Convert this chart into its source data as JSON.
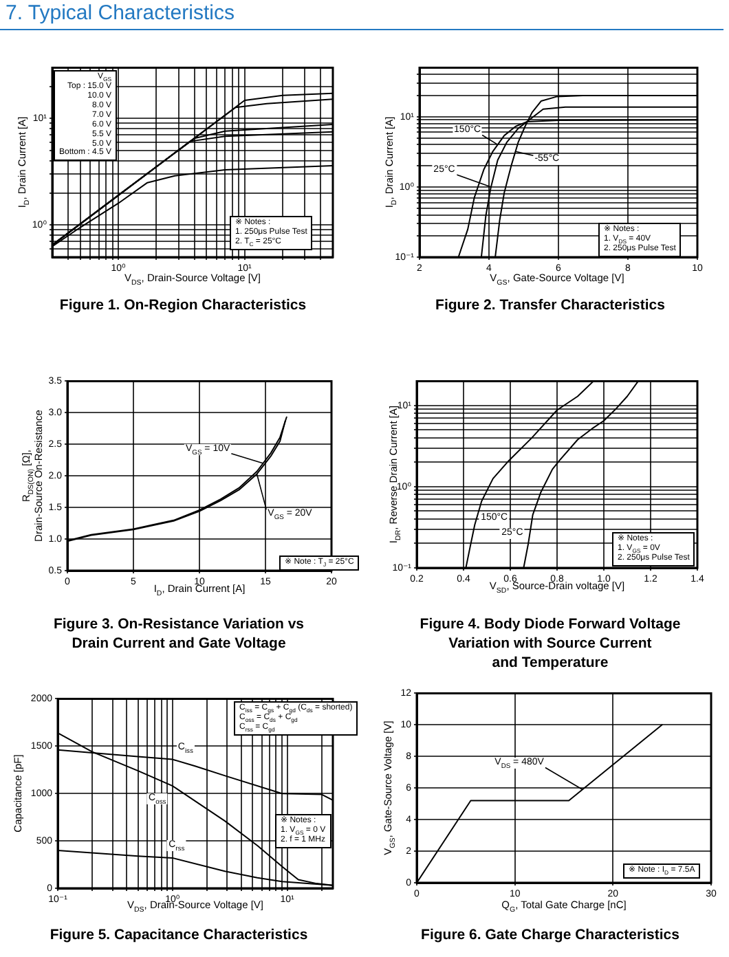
{
  "chart_data": [
    {
      "type": "line",
      "title": "Figure 1. On-Region Characteristics",
      "subtitle": "7. Typical Characteristics",
      "xlabel": "V$_{DS}$, Drain-Source Voltage [V]",
      "ylabel": "I$_{D}$, Drain Current [A]",
      "log": "xy",
      "xlim": [
        0.3,
        50
      ],
      "ylim": [
        0.5,
        30
      ],
      "xticks": [
        {
          "value": 0.4,
          "label": null
        },
        {
          "value": 0.5,
          "label": null
        },
        {
          "value": 0.6,
          "label": null
        },
        {
          "value": 0.7,
          "label": null
        },
        {
          "value": 0.8,
          "label": null
        },
        {
          "value": 0.9,
          "label": null
        },
        {
          "value": 1,
          "label": "10⁰"
        },
        {
          "value": 2,
          "label": null
        },
        {
          "value": 3,
          "label": null
        },
        {
          "value": 4,
          "label": null
        },
        {
          "value": 5,
          "label": null
        },
        {
          "value": 6,
          "label": null
        },
        {
          "value": 7,
          "label": null
        },
        {
          "value": 8,
          "label": null
        },
        {
          "value": 9,
          "label": null
        },
        {
          "value": 10,
          "label": "10¹"
        },
        {
          "value": 20,
          "label": null
        },
        {
          "value": 30,
          "label": null
        },
        {
          "value": 40,
          "label": null
        }
      ],
      "yticks": [
        {
          "value": 0.6,
          "label": null
        },
        {
          "value": 0.7,
          "label": null
        },
        {
          "value": 0.8,
          "label": null
        },
        {
          "value": 0.9,
          "label": null
        },
        {
          "value": 1,
          "label": "10⁰"
        },
        {
          "value": 2,
          "label": null
        },
        {
          "value": 3,
          "label": null
        },
        {
          "value": 4,
          "label": null
        },
        {
          "value": 5,
          "label": null
        },
        {
          "value": 6,
          "label": null
        },
        {
          "value": 7,
          "label": null
        },
        {
          "value": 8,
          "label": null
        },
        {
          "value": 9,
          "label": null
        },
        {
          "value": 10,
          "label": "10¹"
        },
        {
          "value": 20,
          "label": null
        }
      ],
      "grid": true,
      "series": [
        {
          "color": "#000000",
          "x": [
            0.3,
            1,
            3,
            10,
            20,
            50
          ],
          "values": [
            0.65,
            1.9,
            5.05,
            14.8,
            16.5,
            17.2
          ]
        },
        {
          "color": "#000000",
          "x": [
            0.3,
            1,
            3,
            8.5,
            15,
            50
          ],
          "values": [
            0.65,
            1.9,
            5.05,
            12.7,
            13.8,
            15.2
          ]
        },
        {
          "color": "#000000",
          "x": [
            0.3,
            1,
            3,
            4,
            7,
            50
          ],
          "values": [
            0.65,
            1.9,
            5.05,
            6.5,
            7.6,
            8.8
          ]
        },
        {
          "color": "#000000",
          "x": [
            0.3,
            1,
            3,
            3.7,
            7,
            50
          ],
          "values": [
            0.65,
            1.9,
            5.05,
            6.1,
            6.8,
            7.5
          ]
        },
        {
          "color": "#000000",
          "x": [
            0.3,
            0.5,
            1,
            1.7,
            2.8,
            7,
            50
          ],
          "values": [
            0.63,
            0.95,
            1.6,
            2.5,
            2.9,
            3.3,
            3.6
          ]
        }
      ],
      "annotations": [
        "V$_{GS}$\nTop : 15.0 V\n10.0 V\n8.0 V\n7.0 V\n6.0 V\n5.5 V\n5.0 V\nBottom : 4.5 V",
        "※ Notes :\n1. 250μs Pulse Test\n2. T$_{C}$ = 25°C"
      ]
    },
    {
      "type": "line",
      "title": "Figure 2. Transfer Characteristics",
      "xlabel": "V$_{GS}$, Gate-Source Voltage [V]",
      "ylabel": "I$_{D}$, Drain Current [A]",
      "log": "y",
      "xlim": [
        2,
        10
      ],
      "ylim": [
        0.1,
        50
      ],
      "xticks": [
        2,
        4,
        6,
        8,
        10
      ],
      "yticks": [
        {
          "value": 0.1,
          "label": "10⁻¹"
        },
        {
          "value": 0.2,
          "label": null
        },
        {
          "value": 0.3,
          "label": null
        },
        {
          "value": 0.4,
          "label": null
        },
        {
          "value": 0.5,
          "label": null
        },
        {
          "value": 0.6,
          "label": null
        },
        {
          "value": 0.7,
          "label": null
        },
        {
          "value": 0.8,
          "label": null
        },
        {
          "value": 0.9,
          "label": null
        },
        {
          "value": 1,
          "label": "10⁰"
        },
        {
          "value": 2,
          "label": null
        },
        {
          "value": 3,
          "label": null
        },
        {
          "value": 4,
          "label": null
        },
        {
          "value": 5,
          "label": null
        },
        {
          "value": 6,
          "label": null
        },
        {
          "value": 7,
          "label": null
        },
        {
          "value": 8,
          "label": null
        },
        {
          "value": 9,
          "label": null
        },
        {
          "value": 10,
          "label": "10¹"
        },
        {
          "value": 20,
          "label": null
        },
        {
          "value": 30,
          "label": null
        },
        {
          "value": 40,
          "label": null
        }
      ],
      "grid": true,
      "series": [
        {
          "color": "#000000",
          "x": [
            3.12,
            3.39,
            3.58,
            3.85,
            4.11,
            4.44,
            4.77,
            5.1,
            6,
            10
          ],
          "values": [
            0.1,
            0.25,
            0.71,
            1.76,
            3.2,
            5.4,
            7.3,
            8.5,
            8.9,
            9
          ]
        },
        {
          "color": "#000000",
          "x": [
            3.78,
            3.91,
            4.05,
            4.25,
            4.51,
            4.84,
            5.17,
            5.56,
            6.2,
            10
          ],
          "values": [
            0.1,
            0.39,
            0.96,
            2.4,
            4.3,
            6.8,
            9.1,
            12.8,
            13.7,
            13.7
          ]
        },
        {
          "color": "#000000",
          "x": [
            4.18,
            4.31,
            4.44,
            4.64,
            4.84,
            5.04,
            5.24,
            5.5,
            5.96,
            6.7,
            10
          ],
          "values": [
            0.1,
            0.34,
            0.83,
            2,
            4.3,
            7.3,
            11.5,
            16.7,
            19.4,
            20,
            20
          ]
        }
      ],
      "annotations": [
        "※ Notes :\n1. V$_{DS}$ = 40V\n2. 250μs Pulse Test",
        {
          "text": "150°C",
          "x": 4.25,
          "y": 4
        },
        {
          "text": "25°C",
          "x": 4.06,
          "y": 1
        },
        {
          "text": "-55°C",
          "x": 4.76,
          "y": 3.2
        }
      ]
    },
    {
      "type": "line",
      "title": "Figure 3. On-Resistance Variation  vs\nDrain Current and Gate Voltage",
      "xlabel": "I$_{D}$, Drain Current [A]",
      "ylabel": "R$_{DS(ON)}$ [Ω],\nDrain-Source On-Resistance",
      "xlim": [
        0,
        20
      ],
      "ylim": [
        0.5,
        3.5
      ],
      "xticks": [
        0,
        5,
        10,
        15,
        20
      ],
      "yticks": [
        0.5,
        {
          "value": 1,
          "label": "1.0"
        },
        1.5,
        {
          "value": 2,
          "label": "2.0"
        },
        2.5,
        {
          "value": 3,
          "label": "3.0"
        },
        3.5
      ],
      "grid": true,
      "series": [
        {
          "color": "#000000",
          "x": [
            0.1,
            1.8,
            5,
            8.1,
            10,
            11.6,
            13,
            14.35,
            15.4,
            16.1,
            16.6
          ],
          "values": [
            0.98,
            1.07,
            1.16,
            1.3,
            1.46,
            1.63,
            1.81,
            2.07,
            2.36,
            2.61,
            2.93
          ]
        },
        {
          "color": "#000000",
          "x": [
            0.1,
            1.8,
            5,
            8.1,
            10,
            11.6,
            13,
            14.35,
            15.4,
            16.1,
            16.5
          ],
          "values": [
            0.97,
            1.06,
            1.15,
            1.29,
            1.44,
            1.61,
            1.78,
            2.03,
            2.31,
            2.55,
            2.87
          ]
        }
      ],
      "annotations": [
        "※ Note : T$_{J}$ = 25°C",
        {
          "text": "V$_{GS}$ = 10V",
          "x": 14.8,
          "y": 2.2
        },
        {
          "text": "V$_{GS}$ = 20V",
          "x": 14.35,
          "y": 2.03
        }
      ]
    },
    {
      "type": "line",
      "title": "Figure 4. Body Diode Forward Voltage\nVariation with Source Current\nand Temperature",
      "xlabel": "V$_{SD}$, Source-Drain voltage [V]",
      "ylabel": "I$_{DR}$, Reverse Drain Current [A]",
      "log": "y",
      "xlim": [
        0.2,
        1.4
      ],
      "ylim": [
        0.1,
        20
      ],
      "xticks": [
        0.2,
        0.4,
        0.6,
        0.8,
        {
          "value": 1,
          "label": "1.0"
        },
        1.2,
        1.4
      ],
      "yticks": [
        {
          "value": 0.1,
          "label": "10⁻¹"
        },
        {
          "value": 0.2,
          "label": null
        },
        {
          "value": 0.3,
          "label": null
        },
        {
          "value": 0.4,
          "label": null
        },
        {
          "value": 0.5,
          "label": null
        },
        {
          "value": 0.6,
          "label": null
        },
        {
          "value": 0.7,
          "label": null
        },
        {
          "value": 0.8,
          "label": null
        },
        {
          "value": 0.9,
          "label": null
        },
        {
          "value": 1,
          "label": "10⁰"
        },
        {
          "value": 2,
          "label": null
        },
        {
          "value": 3,
          "label": null
        },
        {
          "value": 4,
          "label": null
        },
        {
          "value": 5,
          "label": null
        },
        {
          "value": 6,
          "label": null
        },
        {
          "value": 7,
          "label": null
        },
        {
          "value": 8,
          "label": null
        },
        {
          "value": 9,
          "label": null
        },
        {
          "value": 10,
          "label": "10¹"
        }
      ],
      "grid": true,
      "series": [
        {
          "color": "#000000",
          "x": [
            0.41,
            0.428,
            0.448,
            0.477,
            0.526,
            0.594,
            0.692,
            0.8,
            0.888,
            0.956
          ],
          "values": [
            0.1,
            0.18,
            0.34,
            0.66,
            1.26,
            2.1,
            4,
            8.8,
            13,
            20
          ]
        },
        {
          "color": "#000000",
          "x": [
            0.657,
            0.677,
            0.696,
            0.731,
            0.78,
            0.81,
            0.888,
            0.95,
            1,
            1.05,
            1.1,
            1.147
          ],
          "values": [
            0.1,
            0.2,
            0.45,
            0.86,
            1.64,
            2.1,
            3.8,
            5.2,
            6.5,
            9,
            13,
            20
          ]
        }
      ],
      "annotations": [
        "※ Notes :\n1. V$_{GS}$ = 0V\n2. 250μs Pulse Test",
        {
          "text": "150°C",
          "x": 0.455,
          "y": 0.38
        },
        {
          "text": "25°C",
          "x": 0.685,
          "y": 0.3
        }
      ]
    },
    {
      "type": "line",
      "title": "Figure 5. Capacitance Characteristics",
      "xlabel": "V$_{DS}$, Drain-Source Voltage [V]",
      "ylabel": "Capacitance [pF]",
      "log": "x",
      "xlim": [
        0.1,
        25
      ],
      "ylim": [
        0,
        2000
      ],
      "xticks": [
        {
          "value": 0.1,
          "label": "10⁻¹"
        },
        {
          "value": 0.2,
          "label": null
        },
        {
          "value": 0.3,
          "label": null
        },
        {
          "value": 0.4,
          "label": null
        },
        {
          "value": 0.5,
          "label": null
        },
        {
          "value": 0.6,
          "label": null
        },
        {
          "value": 0.7,
          "label": null
        },
        {
          "value": 0.8,
          "label": null
        },
        {
          "value": 0.9,
          "label": null
        },
        {
          "value": 1,
          "label": "10⁰"
        },
        {
          "value": 2,
          "label": null
        },
        {
          "value": 3,
          "label": null
        },
        {
          "value": 4,
          "label": null
        },
        {
          "value": 5,
          "label": null
        },
        {
          "value": 6,
          "label": null
        },
        {
          "value": 7,
          "label": null
        },
        {
          "value": 8,
          "label": null
        },
        {
          "value": 9,
          "label": null
        },
        {
          "value": 10,
          "label": "10¹"
        },
        {
          "value": 20,
          "label": null
        }
      ],
      "yticks": [
        0,
        500,
        1000,
        1500,
        2000
      ],
      "grid": true,
      "series": [
        {
          "color": "#000000",
          "x": [
            0.1,
            0.2,
            0.5,
            1,
            1.57,
            3,
            9,
            20,
            25
          ],
          "values": [
            1460,
            1430,
            1390,
            1360,
            1290,
            1180,
            1000,
            990,
            930
          ]
        },
        {
          "color": "#000000",
          "x": [
            0.1,
            0.2,
            0.5,
            1,
            2.86,
            5.5,
            9,
            12.5,
            18,
            25
          ],
          "values": [
            1640,
            1440,
            1240,
            1080,
            710,
            450,
            230,
            90,
            50,
            30
          ]
        },
        {
          "color": "#000000",
          "x": [
            0.1,
            0.5,
            1,
            2.86,
            5.5,
            9,
            25
          ],
          "values": [
            400,
            340,
            320,
            180,
            110,
            70,
            30
          ]
        }
      ],
      "annotations": [
        "C$_{iss}$ = C$_{gs}$ + C$_{gd}$ (C$_{ds}$ = shorted)\nC$_{oss}$ = C$_{ds}$ + C$_{gd}$\nC$_{rss}$ = C$_{gd}$",
        "※ Notes :\n1. V$_{GS}$ = 0 V\n2. f = 1 MHz",
        {
          "text": "C$_{iss}$",
          "x": 1.3,
          "y": 1320
        },
        {
          "text": "C$_{oss}$",
          "x": 1,
          "y": 1080
        },
        {
          "text": "C$_{rss}$",
          "x": 1,
          "y": 320
        }
      ]
    },
    {
      "type": "line",
      "title": "Figure 6. Gate Charge Characteristics",
      "xlabel": "Q$_{G}$, Total Gate Charge [nC]",
      "ylabel": "V$_{GS}$, Gate-Source Voltage [V]",
      "xlim": [
        0,
        30
      ],
      "ylim": [
        0,
        12
      ],
      "xticks": [
        0,
        10,
        20,
        30
      ],
      "yticks": [
        0,
        2,
        4,
        6,
        8,
        10,
        12
      ],
      "grid": true,
      "series": [
        {
          "color": "#000000",
          "x": [
            0,
            5.5,
            15.5,
            25
          ],
          "values": [
            0,
            5.2,
            5.2,
            10
          ]
        }
      ],
      "annotations": [
        "※ Note : I$_{D}$ = 7.5A",
        {
          "text": "V$_{DS}$ = 480V",
          "x": 16.9,
          "y": 5.9
        }
      ]
    }
  ]
}
